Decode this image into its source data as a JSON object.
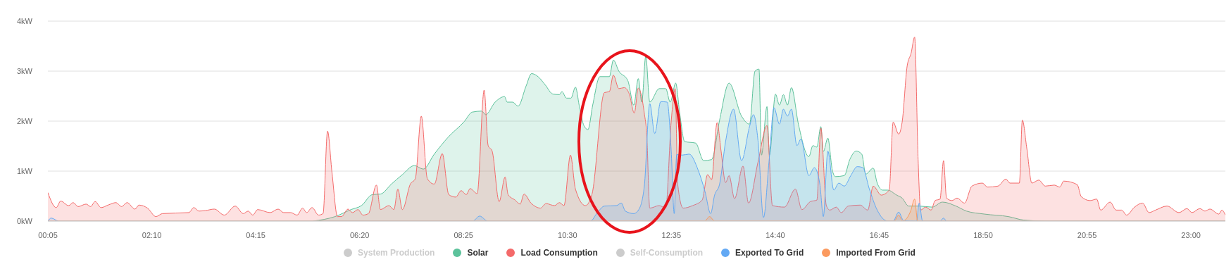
{
  "chart_data": {
    "type": "area",
    "xlim": [
      0.0833,
      23.69
    ],
    "xticks": [
      {
        "value": 0.0833,
        "label": "00:05"
      },
      {
        "value": 2.1667,
        "label": "02:10"
      },
      {
        "value": 4.25,
        "label": "04:15"
      },
      {
        "value": 6.3333,
        "label": "06:20"
      },
      {
        "value": 8.4167,
        "label": "08:25"
      },
      {
        "value": 10.5,
        "label": "10:30"
      },
      {
        "value": 12.5833,
        "label": "12:35"
      },
      {
        "value": 14.6667,
        "label": "14:40"
      },
      {
        "value": 16.75,
        "label": "16:45"
      },
      {
        "value": 18.8333,
        "label": "18:50"
      },
      {
        "value": 20.9167,
        "label": "20:55"
      },
      {
        "value": 23,
        "label": "23:00"
      }
    ],
    "ylim": [
      0,
      4
    ],
    "yticks": [
      {
        "value": 0,
        "label": "0kW"
      },
      {
        "value": 1,
        "label": "1kW"
      },
      {
        "value": 2,
        "label": "2kW"
      },
      {
        "value": 3,
        "label": "3kW"
      },
      {
        "value": 4,
        "label": "4kW"
      }
    ],
    "grid": "y",
    "legend": "bottom",
    "series": [
      {
        "name": "System Production",
        "color": "#cccccc"
      },
      {
        "name": "Solar",
        "color": "#5cc29b",
        "x": [
          5.4,
          5.84,
          6.16,
          6.37,
          6.59,
          6.75,
          6.97,
          7.19,
          7.43,
          7.61,
          7.83,
          8.1,
          8.43,
          8.59,
          8.78,
          8.86,
          9.05,
          9.24,
          9.29,
          9.4,
          9.51,
          9.67,
          9.78,
          9.91,
          10.05,
          10.21,
          10.34,
          10.39,
          10.48,
          10.57,
          10.66,
          10.74,
          10.83,
          10.91,
          11.01,
          11.15,
          11.34,
          11.42,
          11.53,
          11.71,
          11.83,
          11.92,
          11.99,
          12.07,
          12.15,
          12.34,
          12.47,
          12.56,
          12.67,
          12.75,
          12.85,
          13.07,
          13.23,
          13.39,
          13.55,
          13.74,
          13.99,
          14.15,
          14.26,
          14.34,
          14.39,
          14.5,
          14.55,
          14.67,
          14.75,
          14.83,
          14.91,
          14.99,
          15.13,
          15.34,
          15.42,
          15.5,
          15.58,
          15.63,
          15.72,
          15.81,
          15.87,
          16.05,
          16.16,
          16.29,
          16.4,
          16.48,
          16.63,
          16.71,
          16.82,
          16.92,
          17.1,
          17.21,
          17.34,
          17.55,
          17.81,
          18.02,
          18.29,
          18.5,
          18.86,
          19.34,
          19.65,
          20.08,
          23.69
        ],
        "values": [
          0,
          0.09,
          0.23,
          0.31,
          0.53,
          0.54,
          0.74,
          0.93,
          1.11,
          1.04,
          1.34,
          1.67,
          1.99,
          2.18,
          2.2,
          2.13,
          2.38,
          2.49,
          2.38,
          2.38,
          2.3,
          2.7,
          2.95,
          2.89,
          2.73,
          2.54,
          2.53,
          2.59,
          2.46,
          2.46,
          2.68,
          2.29,
          1.91,
          1.83,
          2.34,
          2.89,
          2.89,
          3.22,
          3.0,
          2.81,
          2.32,
          2.85,
          2.38,
          3.3,
          2.38,
          2.65,
          2.65,
          2.38,
          2.76,
          2.16,
          1.59,
          1.56,
          1.21,
          1.23,
          2.02,
          2.76,
          2.1,
          1.94,
          3.0,
          3.04,
          1.32,
          2.29,
          1.32,
          2.54,
          2.32,
          2.53,
          2.32,
          2.67,
          1.94,
          1.29,
          1.51,
          1.48,
          1.89,
          1.39,
          1.66,
          1.02,
          0.89,
          0.91,
          1.23,
          1.4,
          1.34,
          0.94,
          1.06,
          0.76,
          0.62,
          0.62,
          0.52,
          0.46,
          0.3,
          0.3,
          0.28,
          0.38,
          0.3,
          0.2,
          0.14,
          0.09,
          0.02,
          0,
          0
        ]
      },
      {
        "name": "Load Consumption",
        "color": "#f46a6a",
        "x": [
          0.0833,
          0.25,
          0.34,
          0.5,
          0.59,
          0.69,
          0.85,
          0.94,
          1.03,
          1.15,
          1.29,
          1.45,
          1.56,
          1.67,
          1.83,
          1.91,
          2.08,
          2.25,
          2.38,
          2.91,
          3.01,
          3.11,
          3.24,
          3.42,
          3.62,
          3.84,
          4.0,
          4.1,
          4.19,
          4.29,
          4.54,
          4.7,
          4.81,
          4.95,
          5.08,
          5.19,
          5.27,
          5.38,
          5.51,
          5.6,
          5.69,
          5.78,
          5.89,
          5.97,
          6.1,
          6.19,
          6.3,
          6.4,
          6.51,
          6.67,
          6.75,
          6.92,
          7.02,
          7.1,
          7.19,
          7.35,
          7.45,
          7.57,
          7.69,
          7.83,
          7.99,
          8.12,
          8.26,
          8.37,
          8.47,
          8.55,
          8.69,
          8.83,
          8.91,
          8.99,
          9.13,
          9.25,
          9.31,
          9.45,
          9.55,
          9.63,
          9.77,
          9.96,
          10.07,
          10.24,
          10.34,
          10.43,
          10.56,
          10.66,
          10.86,
          10.99,
          11.24,
          11.34,
          11.42,
          11.53,
          11.64,
          11.74,
          11.84,
          11.92,
          12.04,
          12.09,
          12.15,
          12.34,
          12.47,
          12.58,
          12.66,
          12.71,
          12.82,
          13.01,
          13.2,
          13.31,
          13.39,
          13.5,
          13.58,
          13.67,
          13.74,
          13.85,
          14.02,
          14.13,
          14.32,
          14.5,
          14.61,
          14.85,
          15.07,
          15.2,
          15.37,
          15.5,
          15.58,
          15.69,
          15.76,
          15.89,
          15.99,
          16.13,
          16.37,
          16.52,
          16.63,
          16.79,
          16.95,
          17.03,
          17.14,
          17.21,
          17.31,
          17.39,
          17.46,
          17.53,
          17.58,
          17.68,
          17.79,
          17.87,
          17.97,
          18.04,
          18.1,
          18.21,
          18.31,
          18.46,
          18.61,
          18.82,
          18.92,
          19.13,
          19.29,
          19.37,
          19.56,
          19.62,
          19.71,
          19.81,
          19.95,
          20.08,
          20.26,
          20.37,
          20.45,
          20.72,
          20.8,
          20.98,
          21.11,
          21.19,
          21.38,
          21.5,
          21.61,
          21.71,
          21.87,
          22.03,
          22.16,
          22.29,
          22.52,
          22.76,
          22.92,
          23.02,
          23.18,
          23.28,
          23.38,
          23.56,
          23.62,
          23.69
        ],
        "values": [
          0.57,
          0.27,
          0.4,
          0.31,
          0.37,
          0.29,
          0.34,
          0.29,
          0.39,
          0.27,
          0.32,
          0.37,
          0.29,
          0.37,
          0.24,
          0.32,
          0.26,
          0.09,
          0.15,
          0.17,
          0.27,
          0.2,
          0.21,
          0.24,
          0.12,
          0.3,
          0.15,
          0.2,
          0.12,
          0.23,
          0.17,
          0.24,
          0.17,
          0.17,
          0.12,
          0.26,
          0.17,
          0.27,
          0.12,
          0.15,
          1.8,
          0.96,
          0.09,
          0.09,
          0.24,
          0.17,
          0.23,
          0.12,
          0.15,
          0.72,
          0.23,
          0.31,
          0.23,
          0.64,
          0.23,
          0.74,
          0.85,
          2.1,
          0.85,
          0.74,
          1.35,
          0.53,
          0.48,
          0.61,
          0.53,
          0.65,
          0.55,
          2.62,
          1.51,
          1.4,
          0.39,
          0.88,
          0.53,
          0.42,
          0.34,
          0.54,
          0.36,
          0.26,
          0.35,
          0.31,
          0.37,
          0.31,
          1.32,
          0.64,
          0.31,
          0.53,
          2.57,
          2.59,
          2.92,
          2.65,
          2.67,
          2.54,
          2.16,
          2.66,
          2.16,
          1.72,
          0.26,
          0.31,
          0.26,
          2.0,
          2.65,
          0.74,
          0.26,
          0.31,
          0.42,
          0.93,
          0.83,
          1.97,
          1.4,
          0.77,
          0.91,
          0.45,
          1.1,
          0.36,
          1.18,
          1.91,
          0.31,
          0.28,
          0.64,
          0.23,
          0.39,
          0.42,
          1.86,
          0.31,
          0.22,
          0.28,
          0.17,
          0.3,
          0.32,
          0.22,
          0.7,
          0.52,
          0.62,
          1.98,
          1.74,
          1.98,
          3.1,
          3.36,
          3.68,
          1.23,
          0.22,
          0.28,
          0.22,
          0.41,
          0.44,
          1.21,
          0.46,
          0.41,
          0.46,
          0.36,
          0.7,
          0.76,
          0.68,
          0.7,
          0.84,
          0.76,
          0.76,
          2.02,
          1.45,
          0.76,
          0.82,
          0.7,
          0.72,
          0.68,
          0.8,
          0.73,
          0.49,
          0.41,
          0.44,
          0.22,
          0.38,
          0.22,
          0.22,
          0.12,
          0.28,
          0.36,
          0.17,
          0.22,
          0.3,
          0.17,
          0.25,
          0.17,
          0.25,
          0.2,
          0.24,
          0.14,
          0.22,
          0.12
        ]
      },
      {
        "name": "Self-Consumption",
        "color": "#cccccc"
      },
      {
        "name": "Exported To Grid",
        "color": "#63a9f4",
        "x": [
          0.0833,
          0.15,
          0.3,
          8.6,
          8.74,
          8.9,
          10.96,
          11.1,
          11.24,
          11.48,
          11.58,
          11.66,
          11.83,
          11.93,
          12.04,
          12.15,
          12.25,
          12.37,
          12.5,
          12.58,
          12.64,
          12.69,
          12.8,
          12.94,
          13.12,
          13.26,
          13.37,
          13.45,
          13.55,
          13.67,
          13.83,
          13.99,
          14.15,
          14.23,
          14.32,
          14.43,
          14.54,
          14.64,
          14.75,
          14.83,
          14.91,
          14.99,
          15.1,
          15.18,
          15.34,
          15.45,
          15.56,
          15.63,
          15.72,
          15.84,
          15.94,
          16.05,
          16.18,
          16.31,
          16.42,
          16.55,
          16.71,
          16.92,
          17.03,
          17.14,
          17.24,
          17.5,
          17.55,
          17.62,
          17.97,
          18.04,
          18.1,
          23.69
        ],
        "values": [
          0,
          0.06,
          0,
          0,
          0.1,
          0,
          0,
          0.17,
          0.3,
          0.31,
          0.36,
          0.2,
          0.15,
          0.23,
          0.69,
          2.35,
          1.75,
          2.39,
          2.38,
          1.4,
          0.15,
          1.33,
          1.32,
          1.34,
          1.02,
          0.58,
          0.15,
          0.52,
          0.74,
          1.59,
          2.24,
          1.21,
          1.89,
          2.13,
          1.61,
          0.07,
          1.18,
          2.27,
          1.94,
          2.24,
          2.1,
          2.24,
          1.51,
          1.64,
          0.91,
          1.07,
          0.74,
          0.09,
          1.4,
          0.62,
          0.76,
          0.7,
          0.91,
          1.09,
          1.07,
          0.65,
          0.22,
          0,
          0,
          0.18,
          0.01,
          0,
          0.36,
          0,
          0,
          0.06,
          0,
          0
        ]
      },
      {
        "name": "Imported From Grid",
        "color": "#fb9a5f",
        "x": [
          0.0833,
          13.25,
          13.35,
          13.45,
          17.05,
          17.14,
          17.22,
          17.38,
          17.46,
          17.52,
          23.69
        ],
        "values": [
          0,
          0,
          0.09,
          0,
          0,
          0.12,
          0,
          0.2,
          0.44,
          0,
          0
        ]
      }
    ]
  }
}
